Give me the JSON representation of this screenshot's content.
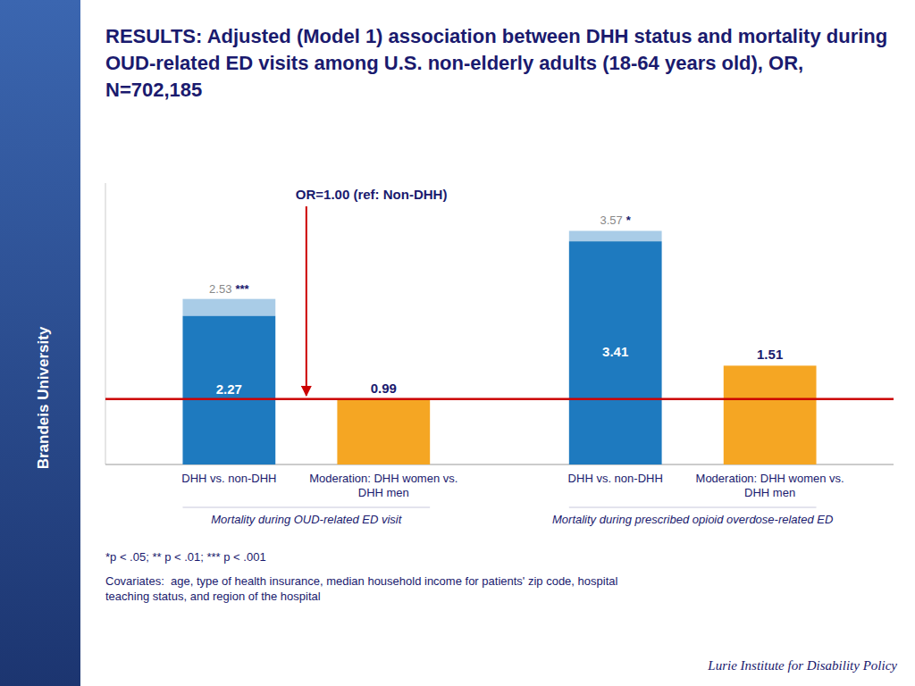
{
  "chart_data": {
    "type": "bar",
    "title": "RESULTS: Adjusted (Model 1) association between DHH status and mortality during OUD-related ED visits among U.S. non-elderly adults (18-64 years old), OR, N=702,185",
    "sidebar_text": "Brandeis University",
    "source": "Lurie Institute for Disability Policy",
    "categories": [
      "DHH vs. non-DHH",
      "Moderation: DHH women vs.\nDHH men",
      "DHH vs. non-DHH",
      "Moderation: DHH women vs.\nDHH men"
    ],
    "category_groups": [
      "Mortality during OUD-related ED visit",
      "Mortality during prescribed opioid overdose-related ED"
    ],
    "values": [
      2.27,
      0.99,
      3.41,
      1.51
    ],
    "upper": [
      2.53,
      null,
      3.57,
      null
    ],
    "significance": [
      "***",
      null,
      "*",
      null
    ],
    "colors": [
      "#1e7abf",
      "#f5a623",
      "#1e7abf",
      "#f5a623"
    ],
    "data_labels": true,
    "reference_lines": [
      {
        "value": 1.0,
        "label": "OR=1.00 (ref: Non-DHH)",
        "color": "#CC0000"
      }
    ],
    "ylim": [
      0.0,
      4.3
    ],
    "tick_labels": "x",
    "grid": false,
    "notes": [
      "*p < .05; ** p < .01; *** p < .001",
      "Covariates:  age, type of health insurance, median household income for patients' zip code, hospital\nteaching status, and region of the hospital"
    ]
  }
}
